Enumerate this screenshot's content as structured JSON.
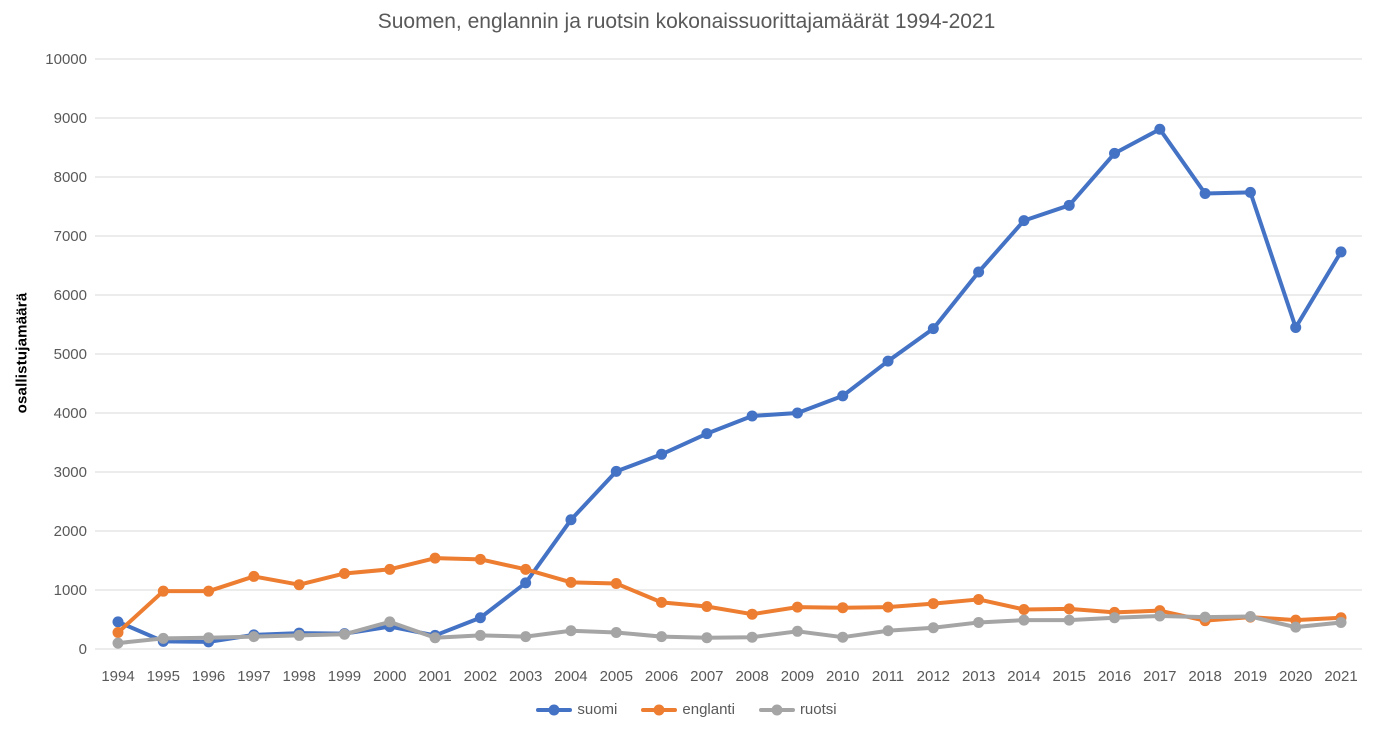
{
  "title": "Suomen, englannin ja ruotsin kokonaissuorittajamäärät 1994-2021",
  "y_axis_title": "osallistujamäärä",
  "colors": {
    "suomi": "#4472C4",
    "englanti": "#ED7D31",
    "ruotsi": "#A5A5A5",
    "gridline": "#D9D9D9",
    "title_text": "#595959",
    "tick_text": "#595959"
  },
  "legend": {
    "items": [
      {
        "label": "suomi",
        "color_key": "suomi"
      },
      {
        "label": "englanti",
        "color_key": "englanti"
      },
      {
        "label": "ruotsi",
        "color_key": "ruotsi"
      }
    ]
  },
  "chart_data": {
    "type": "line",
    "title": "Suomen, englannin ja ruotsin kokonaissuorittajamäärät 1994-2021",
    "xlabel": "",
    "ylabel": "osallistujamäärä",
    "ylim": [
      0,
      10000
    ],
    "ytick_step": 1000,
    "grid": true,
    "legend_position": "bottom",
    "categories": [
      "1994",
      "1995",
      "1996",
      "1997",
      "1998",
      "1999",
      "2000",
      "2001",
      "2002",
      "2003",
      "2004",
      "2005",
      "2006",
      "2007",
      "2008",
      "2009",
      "2010",
      "2011",
      "2012",
      "2013",
      "2014",
      "2015",
      "2016",
      "2017",
      "2018",
      "2019",
      "2020",
      "2021"
    ],
    "series": [
      {
        "name": "suomi",
        "color": "#4472C4",
        "values": [
          460,
          130,
          120,
          240,
          270,
          260,
          380,
          230,
          530,
          1120,
          2190,
          3010,
          3300,
          3650,
          3950,
          4000,
          4290,
          4880,
          5430,
          6390,
          7260,
          7520,
          8400,
          8810,
          7720,
          7740,
          5450,
          6730
        ]
      },
      {
        "name": "englanti",
        "color": "#ED7D31",
        "values": [
          280,
          980,
          980,
          1230,
          1090,
          1280,
          1350,
          1540,
          1520,
          1350,
          1130,
          1110,
          790,
          720,
          590,
          710,
          700,
          710,
          770,
          840,
          670,
          680,
          620,
          650,
          480,
          540,
          490,
          530
        ]
      },
      {
        "name": "ruotsi",
        "color": "#A5A5A5",
        "values": [
          100,
          180,
          190,
          210,
          230,
          250,
          460,
          190,
          230,
          210,
          310,
          280,
          210,
          190,
          200,
          300,
          200,
          310,
          360,
          450,
          490,
          490,
          530,
          560,
          540,
          550,
          370,
          450
        ]
      }
    ]
  }
}
